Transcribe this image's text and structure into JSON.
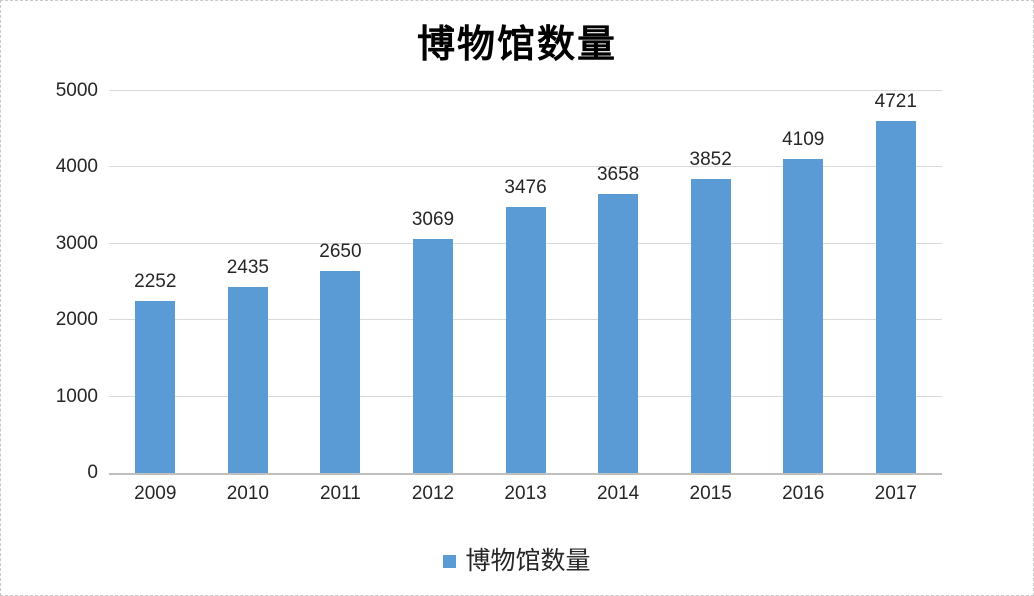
{
  "chart_data": {
    "type": "bar",
    "title": "博物馆数量",
    "categories": [
      "2009",
      "2010",
      "2011",
      "2012",
      "2013",
      "2014",
      "2015",
      "2016",
      "2017"
    ],
    "series": [
      {
        "name": "博物馆数量",
        "values": [
          2252,
          2435,
          2650,
          3069,
          3476,
          3658,
          3852,
          4109,
          4721
        ]
      }
    ],
    "data_labels": [
      2252,
      2435,
      2650,
      3069,
      3476,
      3658,
      3852,
      4109,
      4721
    ],
    "xlabel": "",
    "ylabel": "",
    "ylim": [
      0,
      5000
    ],
    "yticks": [
      0,
      1000,
      2000,
      3000,
      4000,
      5000
    ],
    "grid": true,
    "legend_position": "bottom",
    "colors": {
      "bar": "#5B9BD5",
      "gridline": "#D9D9D9",
      "axis_line": "#BFBFBF",
      "label_text": "#262626",
      "title_text": "#000000",
      "page_border": "#C8C8C8"
    }
  }
}
